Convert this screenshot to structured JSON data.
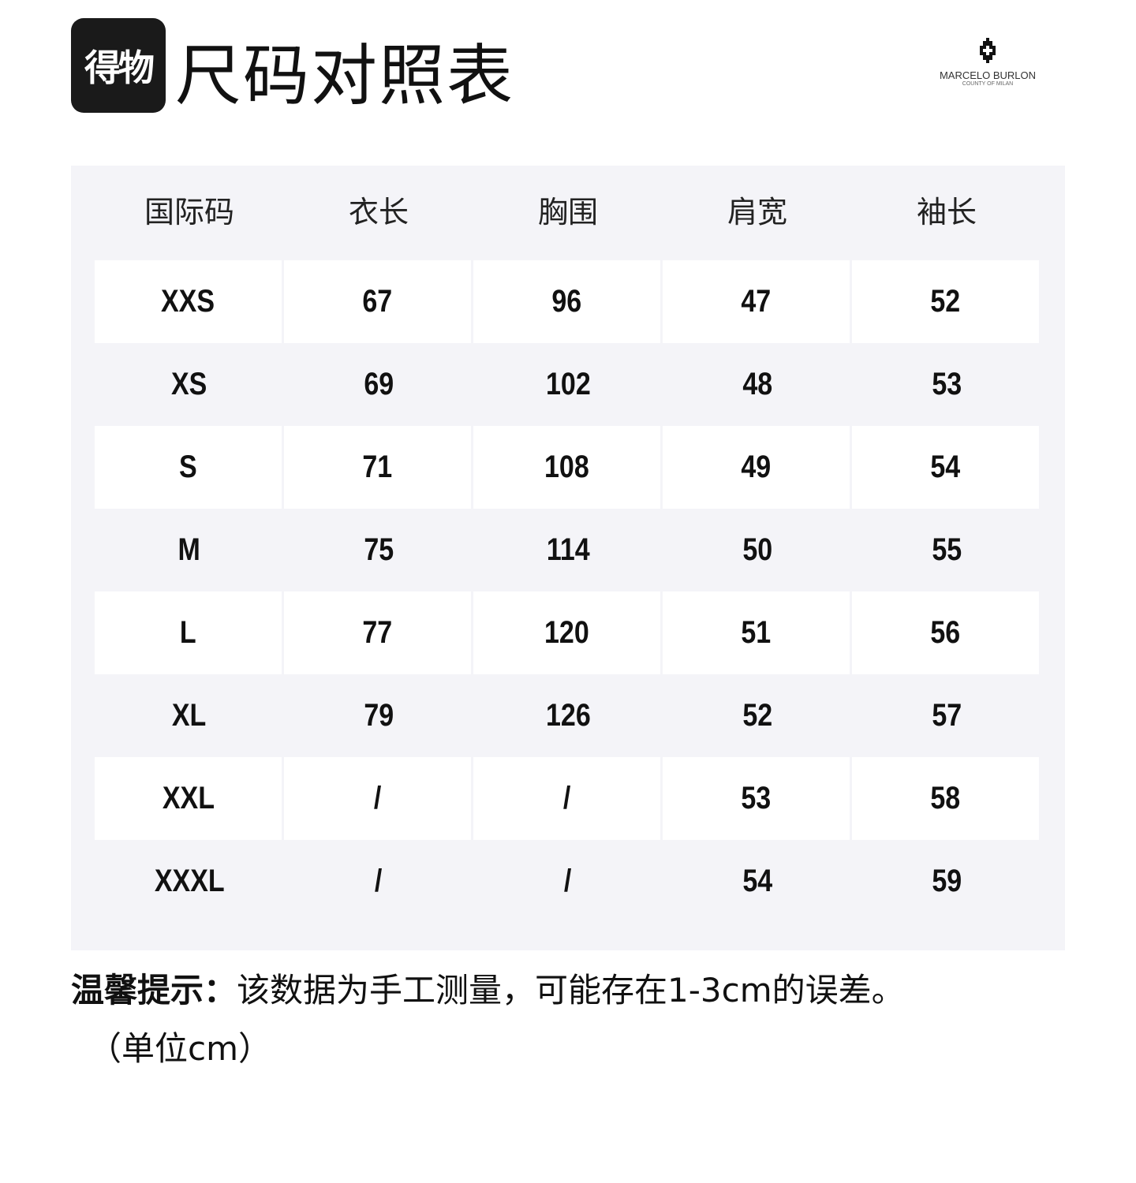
{
  "header": {
    "logo_text": "得物",
    "title": "尺码对照表",
    "brand_name": "MARCELO BURLON",
    "brand_sub": "COUNTY OF MILAN"
  },
  "table": {
    "columns": [
      "国际码",
      "衣长",
      "胸围",
      "肩宽",
      "袖长"
    ],
    "rows": [
      [
        "XXS",
        "67",
        "96",
        "47",
        "52"
      ],
      [
        "XS",
        "69",
        "102",
        "48",
        "53"
      ],
      [
        "S",
        "71",
        "108",
        "49",
        "54"
      ],
      [
        "M",
        "75",
        "114",
        "50",
        "55"
      ],
      [
        "L",
        "77",
        "120",
        "51",
        "56"
      ],
      [
        "XL",
        "79",
        "126",
        "52",
        "57"
      ],
      [
        "XXL",
        "/",
        "/",
        "53",
        "58"
      ],
      [
        "XXXL",
        "/",
        "/",
        "54",
        "59"
      ]
    ]
  },
  "note": {
    "label": "温馨提示：",
    "text": "该数据为手工测量，可能存在1-3cm的误差。",
    "unit": "（单位cm）"
  }
}
